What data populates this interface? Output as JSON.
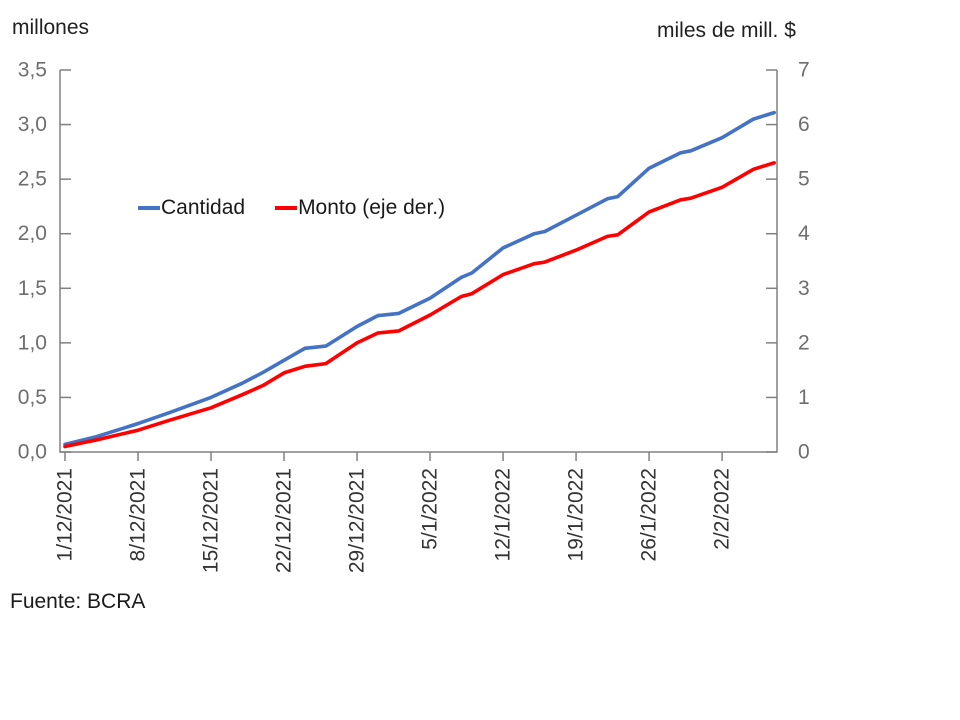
{
  "colors": {
    "axis": "#808080",
    "y_tick_text": "#6e6e6e",
    "x_tick_text": "#333333",
    "title_text": "#1f1f1f",
    "cantidad_blue": "#4472C4",
    "monto_red": "#FF0000"
  },
  "chart_data": {
    "type": "line",
    "left_axis": {
      "label": "millones",
      "ticks": [
        "3,5",
        "3,0",
        "2,5",
        "2,0",
        "1,5",
        "1,0",
        "0,5",
        "0,0"
      ],
      "max": 3.5,
      "min": 0
    },
    "right_axis": {
      "label": "miles de mill. $",
      "ticks": [
        "7",
        "6",
        "5",
        "4",
        "3",
        "2",
        "1",
        "0"
      ],
      "max": 7,
      "min": 0
    },
    "x_tick_labels": [
      "1/12/2021",
      "8/12/2021",
      "15/12/2021",
      "22/12/2021",
      "29/12/2021",
      "5/1/2022",
      "12/1/2022",
      "19/1/2022",
      "26/1/2022",
      "2/2/2022"
    ],
    "grid": "off",
    "legend_position": "inside-top-left",
    "x": [
      "1/12/2021",
      "4/12/2021",
      "8/12/2021",
      "11/12/2021",
      "15/12/2021",
      "18/12/2021",
      "20/12/2021",
      "22/12/2021",
      "24/12/2021",
      "26/12/2021",
      "29/12/2021",
      "31/12/2021",
      "2/1/2022",
      "5/1/2022",
      "8/1/2022",
      "9/1/2022",
      "12/1/2022",
      "15/1/2022",
      "16/1/2022",
      "19/1/2022",
      "22/1/2022",
      "23/1/2022",
      "26/1/2022",
      "29/1/2022",
      "30/1/2022",
      "2/2/2022",
      "5/2/2022",
      "7/2/2022"
    ],
    "series": [
      {
        "name": "Cantidad",
        "axis": "left",
        "color": "#4472C4",
        "values": [
          0.07,
          0.14,
          0.26,
          0.36,
          0.5,
          0.63,
          0.73,
          0.84,
          0.95,
          0.97,
          1.15,
          1.25,
          1.27,
          1.41,
          1.6,
          1.64,
          1.87,
          2.0,
          2.02,
          2.17,
          2.32,
          2.34,
          2.6,
          2.74,
          2.76,
          2.88,
          3.05,
          3.11
        ]
      },
      {
        "name": "Monto (eje der.)",
        "axis": "right",
        "color": "#FF0000",
        "values": [
          0.1,
          0.22,
          0.4,
          0.58,
          0.81,
          1.05,
          1.22,
          1.45,
          1.57,
          1.62,
          2.0,
          2.18,
          2.22,
          2.51,
          2.85,
          2.9,
          3.25,
          3.45,
          3.48,
          3.7,
          3.95,
          3.98,
          4.4,
          4.62,
          4.65,
          4.85,
          5.18,
          5.3
        ]
      }
    ],
    "source": "Fuente: BCRA"
  }
}
